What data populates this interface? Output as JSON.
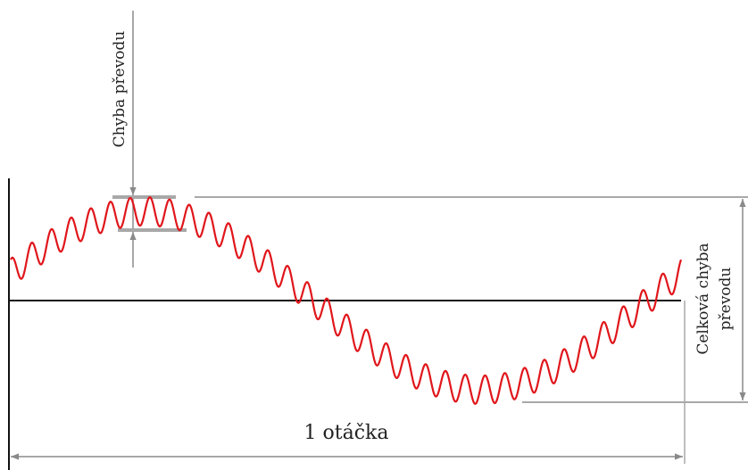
{
  "labels": {
    "local_error": "Chyba převodu",
    "total_error_line1": "Celková chyba",
    "total_error_line2": "převodu",
    "revolution": "1 otáčka"
  },
  "colors": {
    "signal": "#e0161b",
    "axis": "#111111",
    "guide": "#a8a8a8",
    "arrow": "#8a8a8a",
    "text": "#222222"
  }
}
